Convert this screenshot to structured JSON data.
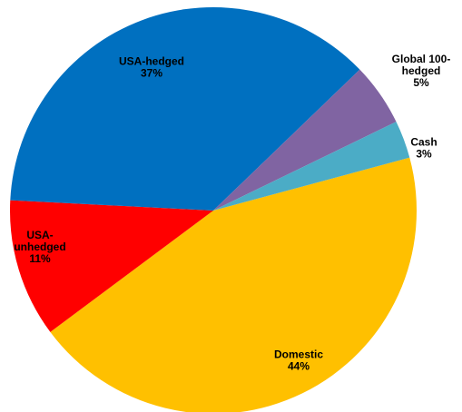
{
  "chart_data": {
    "type": "pie",
    "title": "",
    "slices": [
      {
        "key": "domestic",
        "label_lines": [
          "Domestic"
        ],
        "percent_label": "44%",
        "value": 44,
        "color": "#FFC000"
      },
      {
        "key": "usa-unhedged",
        "label_lines": [
          "USA-",
          "unhedged"
        ],
        "percent_label": "11%",
        "value": 11,
        "color": "#FF0000"
      },
      {
        "key": "usa-hedged",
        "label_lines": [
          "USA-hedged"
        ],
        "percent_label": "37%",
        "value": 37,
        "color": "#0070C0"
      },
      {
        "key": "global-100-hedged",
        "label_lines": [
          "Global 100-",
          "hedged"
        ],
        "percent_label": "5%",
        "value": 5,
        "color": "#8064A2"
      },
      {
        "key": "cash",
        "label_lines": [
          "Cash"
        ],
        "percent_label": "3%",
        "value": 3,
        "color": "#4BACC6"
      }
    ]
  }
}
